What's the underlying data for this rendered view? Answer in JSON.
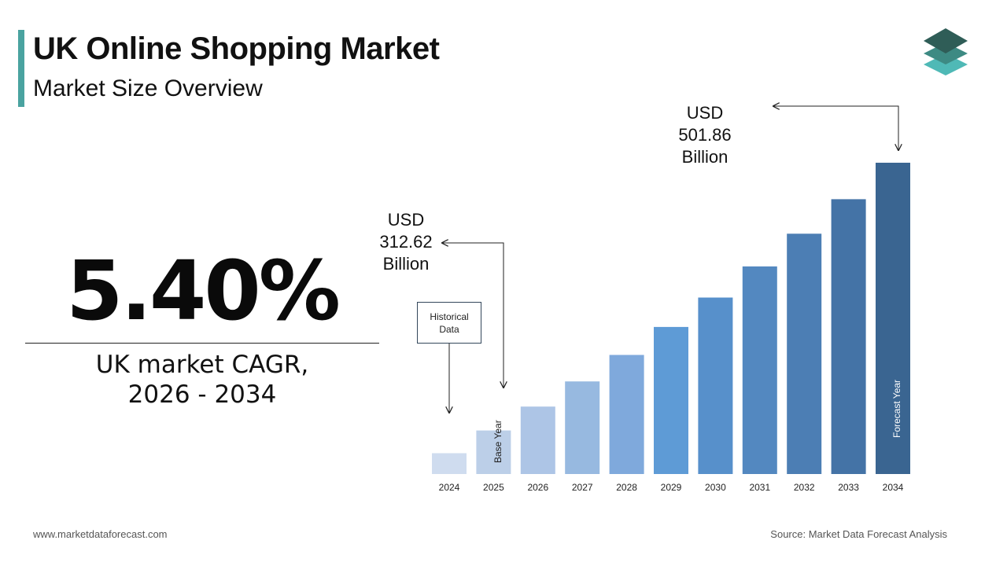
{
  "header": {
    "title": "UK Online Shopping Market",
    "subtitle": "Market Size Overview",
    "accent_color": "#4aa3a0"
  },
  "logo": {
    "icon": "stacked-layers-icon",
    "colors": [
      "#2f5d57",
      "#3d8a83",
      "#4fb9b6"
    ]
  },
  "cagr": {
    "value": "5.40%",
    "label_line1": "UK market CAGR,",
    "label_line2": "2026 - 2034"
  },
  "callouts": {
    "start": {
      "line1": "USD",
      "line2": "312.62",
      "line3": "Billion"
    },
    "end": {
      "line1": "USD",
      "line2": "501.86",
      "line3": "Billion"
    },
    "historical": "Historical Data",
    "base_year_label": "Base Year",
    "forecast_year_label": "Forecast Year"
  },
  "chart_data": {
    "type": "bar",
    "title": "",
    "xlabel": "",
    "ylabel": "",
    "categories": [
      "2024",
      "2025",
      "2026",
      "2027",
      "2028",
      "2029",
      "2030",
      "2031",
      "2032",
      "2033",
      "2034"
    ],
    "values": [
      296.6,
      312.62,
      329.5,
      347.3,
      366.0,
      385.8,
      406.6,
      428.6,
      451.7,
      476.1,
      501.86
    ],
    "unit": "USD Billion",
    "colors": [
      "#cfdcef",
      "#bccfe8",
      "#adc5e6",
      "#97b9e0",
      "#7fa9dc",
      "#5e9bd6",
      "#5790cb",
      "#5388c0",
      "#4c7eb4",
      "#4473a6",
      "#3a6591"
    ],
    "grid": false,
    "legend": "none"
  },
  "footer": {
    "website": "www.marketdataforecast.com",
    "source": "Source: Market Data Forecast Analysis"
  }
}
